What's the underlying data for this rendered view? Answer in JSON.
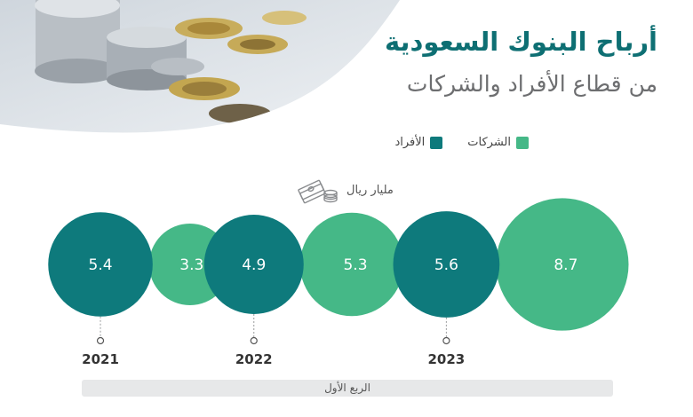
{
  "header": {
    "title": "أرباح البنوك السعودية",
    "subtitle": "من قطاع الأفراد والشركات"
  },
  "legend": {
    "items": [
      {
        "label": "الشركات",
        "color": "#45b887"
      },
      {
        "label": "الأفراد",
        "color": "#0e7a7c"
      }
    ]
  },
  "unit": {
    "label": "مليار ريال",
    "icon": "money-stack-icon"
  },
  "chart_data": {
    "type": "bubble",
    "categories": [
      "2021",
      "2022",
      "2023"
    ],
    "series": [
      {
        "name": "الأفراد",
        "color": "#0e7a7c",
        "values": [
          5.4,
          4.9,
          5.6
        ]
      },
      {
        "name": "الشركات",
        "color": "#45b887",
        "values": [
          3.3,
          5.3,
          8.7
        ]
      }
    ],
    "footer_label": "الربع الأول"
  }
}
